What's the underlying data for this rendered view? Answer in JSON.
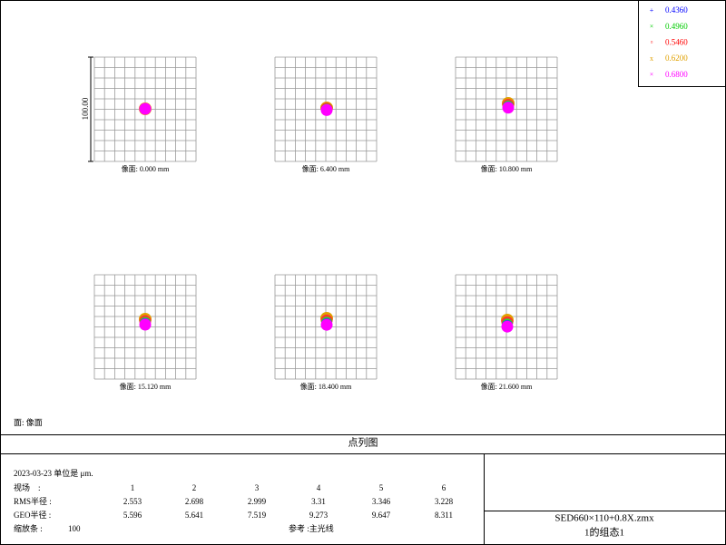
{
  "legend": [
    "0.4360",
    "0.4960",
    "0.5460",
    "0.6200",
    "0.6800"
  ],
  "scale_label": "100.00",
  "panels": [
    "像面: 0.000 mm",
    "像面: 6.400 mm",
    "像面: 10.800 mm",
    "像面: 15.120 mm",
    "像面: 18.400 mm",
    "像面: 21.600 mm"
  ],
  "surface_label": "面: 像面",
  "title": "点列图",
  "footer": {
    "date_units": "2023-03-23  单位是 μm.",
    "rows": [
      {
        "label": "视场    :",
        "values": [
          1,
          2,
          3,
          4,
          5,
          6
        ]
      },
      {
        "label": "RMS半径 :",
        "values": [
          2.553,
          2.698,
          2.999,
          3.31,
          3.346,
          3.228
        ]
      },
      {
        "label": "GEO半径 :",
        "values": [
          5.596,
          5.641,
          7.519,
          9.273,
          9.647,
          8.311
        ]
      }
    ],
    "scale_name": "缩放条  :",
    "scale_value": 100,
    "reference": "参考  :主光线",
    "file": "SED660×110+0.8X.zmx",
    "config": "1的组态1"
  }
}
